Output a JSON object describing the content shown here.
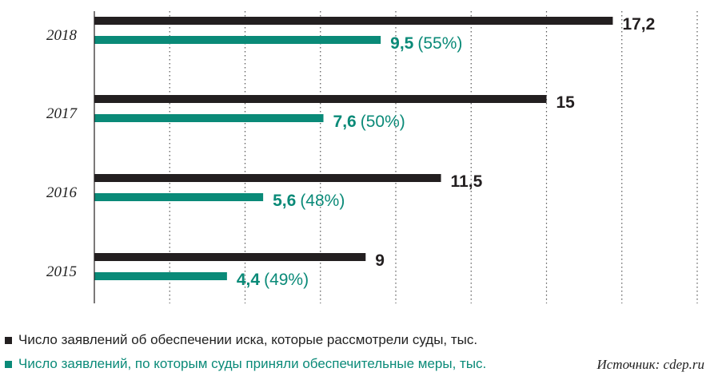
{
  "chart_data": {
    "type": "bar",
    "orientation": "horizontal",
    "categories": [
      "2018",
      "2017",
      "2016",
      "2015"
    ],
    "series": [
      {
        "name": "Число заявлений об обеспечении иска, которые рассмотрели суды, тыс.",
        "color": "#231f20",
        "values": [
          17.2,
          15,
          11.5,
          9
        ],
        "labels": [
          "17,2",
          "15",
          "11,5",
          "9"
        ]
      },
      {
        "name": "Число заявлений, по которым суды приняли обеспечительные меры, тыс.",
        "color": "#0a8a78",
        "values": [
          9.5,
          7.6,
          5.6,
          4.4
        ],
        "labels": [
          "9,5",
          "7,6",
          "5,6",
          "4,4"
        ],
        "percent_labels": [
          "(55%)",
          "(50%)",
          "(48%)",
          "(49%)"
        ]
      }
    ],
    "xlim": [
      0,
      20
    ],
    "grid": "vertical-dotted",
    "legend_position": "bottom-left",
    "source": "Источник: cdep.ru"
  }
}
